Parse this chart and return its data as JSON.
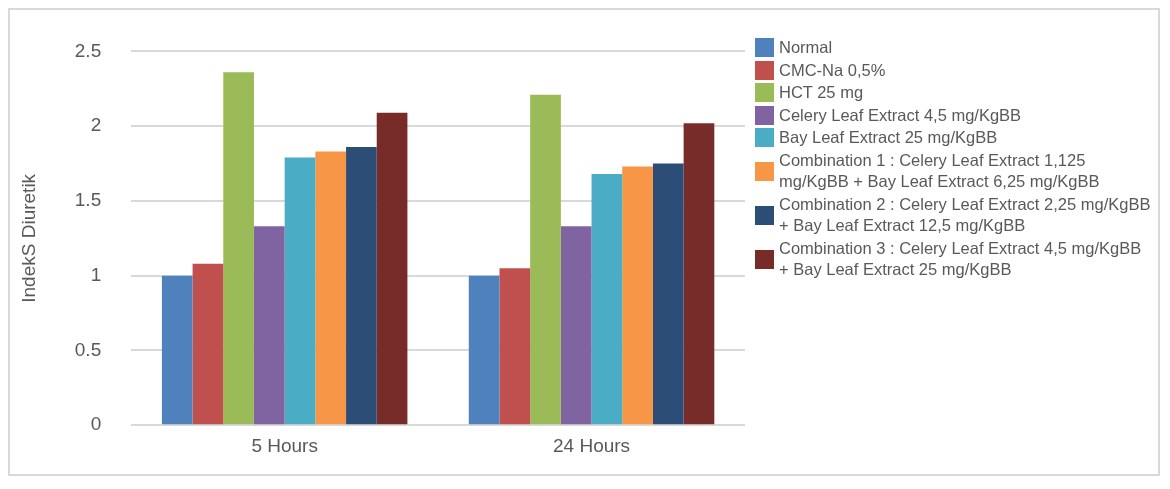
{
  "chart_data": {
    "type": "bar",
    "ylabel": "IndekS Diuretik",
    "categories": [
      "5 Hours",
      "24 Hours"
    ],
    "ylim": [
      0,
      2.5
    ],
    "yticks": [
      0,
      0.5,
      1,
      1.5,
      2,
      2.5
    ],
    "grid": "y",
    "legend": "right",
    "series": [
      {
        "name": "Normal",
        "color": "#4f81bd",
        "values": [
          1.0,
          1.0
        ]
      },
      {
        "name": "CMC-Na 0,5%",
        "color": "#c0504d",
        "values": [
          1.08,
          1.05
        ]
      },
      {
        "name": "HCT 25 mg",
        "color": "#9bbb59",
        "values": [
          2.36,
          2.21
        ]
      },
      {
        "name": "Celery Leaf Extract 4,5 mg/KgBB",
        "color": "#8064a2",
        "values": [
          1.33,
          1.33
        ]
      },
      {
        "name": "Bay Leaf Extract 25 mg/KgBB",
        "color": "#4bacc6",
        "values": [
          1.79,
          1.68
        ]
      },
      {
        "name": "Combination 1 : Celery Leaf Extract  1,125 mg/KgBB + Bay Leaf Extract 6,25 mg/KgBB",
        "color": "#f79646",
        "values": [
          1.83,
          1.73
        ]
      },
      {
        "name": "Combination 2 : Celery Leaf Extract 2,25 mg/KgBB + Bay Leaf Extract 12,5 mg/KgBB",
        "color": "#2c4d75",
        "values": [
          1.86,
          1.75
        ]
      },
      {
        "name": "Combination 3 : Celery Leaf Extract 4,5 mg/KgBB + Bay Leaf Extract 25 mg/KgBB",
        "color": "#772c2a",
        "values": [
          2.09,
          2.02
        ]
      }
    ]
  }
}
